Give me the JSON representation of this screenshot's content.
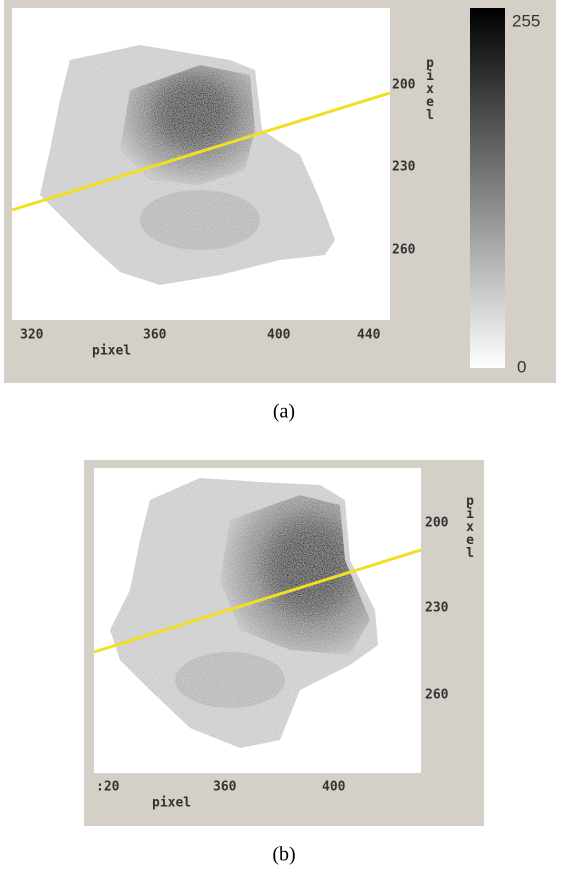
{
  "panels": [
    {
      "x_ticks": [
        "320",
        "360",
        "400",
        "440"
      ],
      "x_axis_label": "pixel",
      "y_ticks": [
        "200",
        "230",
        "260"
      ],
      "y_axis_label": "pixel",
      "colorbar": {
        "max_label": "255",
        "min_label": "0"
      },
      "caption": "(a)"
    },
    {
      "x_ticks": [
        ":20",
        "360",
        "400"
      ],
      "x_axis_label": "pixel",
      "y_ticks": [
        "200",
        "230",
        "260"
      ],
      "y_axis_label": "pixel",
      "caption": "(b)"
    }
  ]
}
